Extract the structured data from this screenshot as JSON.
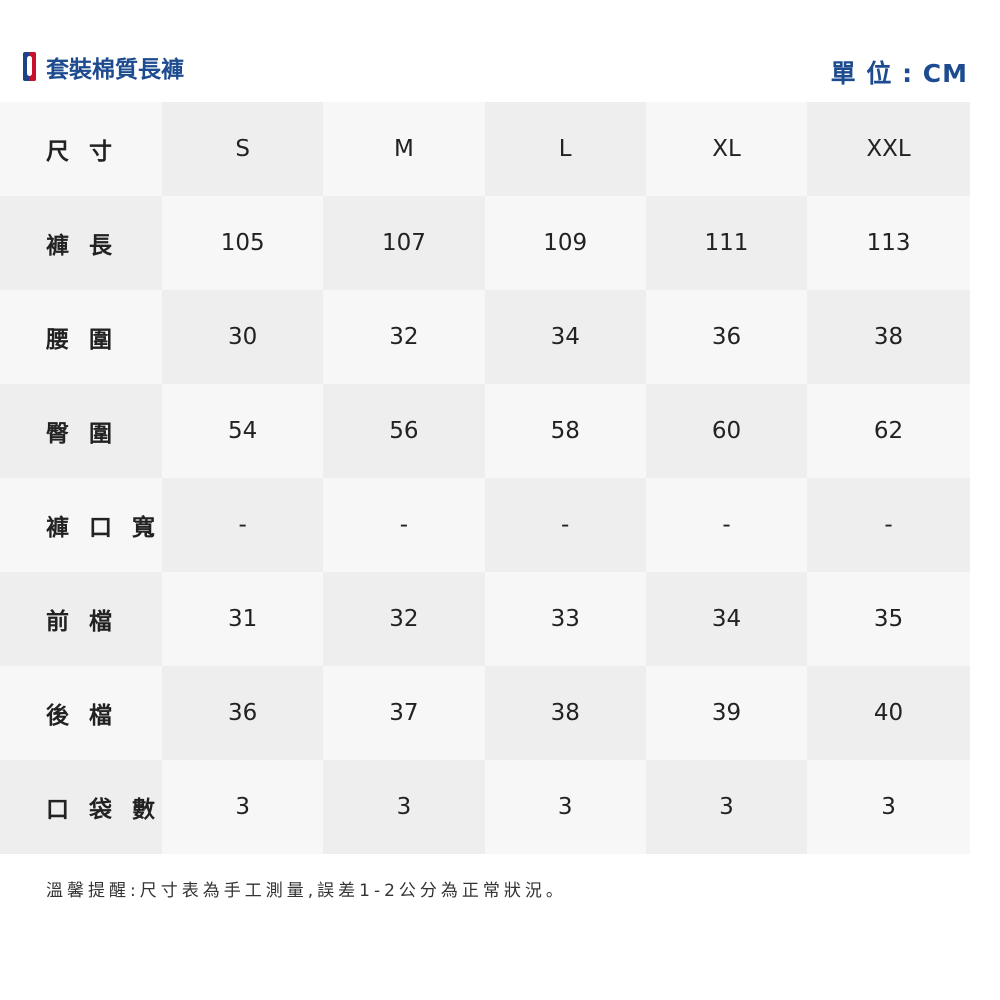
{
  "header": {
    "title": "套裝棉質長褲",
    "unit": "單 位 : CM",
    "logo_icon": "nba-logo",
    "brand_color": "#1d4b8f"
  },
  "table": {
    "columns": [
      "尺 寸",
      "S",
      "M",
      "L",
      "XL",
      "XXL"
    ],
    "rows": [
      {
        "label": "褲 長",
        "values": [
          "105",
          "107",
          "109",
          "111",
          "113"
        ]
      },
      {
        "label": "腰 圍",
        "values": [
          "30",
          "32",
          "34",
          "36",
          "38"
        ]
      },
      {
        "label": "臀 圍",
        "values": [
          "54",
          "56",
          "58",
          "60",
          "62"
        ]
      },
      {
        "label": "褲 口 寬",
        "values": [
          "-",
          "-",
          "-",
          "-",
          "-"
        ]
      },
      {
        "label": "前 檔",
        "values": [
          "31",
          "32",
          "33",
          "34",
          "35"
        ]
      },
      {
        "label": "後 檔",
        "values": [
          "36",
          "37",
          "38",
          "39",
          "40"
        ]
      },
      {
        "label": "口 袋 數",
        "values": [
          "3",
          "3",
          "3",
          "3",
          "3"
        ]
      }
    ]
  },
  "note": "溫馨提醒:尺寸表為手工測量,誤差1-2公分為正常狀況。"
}
